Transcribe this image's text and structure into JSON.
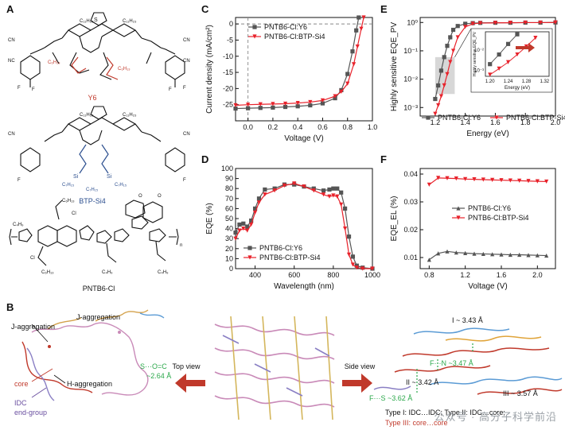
{
  "panel_labels": {
    "a": "A",
    "b": "B",
    "c": "C",
    "d": "D",
    "e": "E",
    "f": "F"
  },
  "structures": {
    "y6": {
      "name": "Y6",
      "sub_core": "C11H23",
      "sub_side": "C6H13",
      "substituents": [
        "CN",
        "F",
        "S",
        "N"
      ],
      "name_color": "#c0392b"
    },
    "btp": {
      "name": "BTP-Si4",
      "sub_core": "C11H23",
      "silane": "Si",
      "alkyl": "C7H15",
      "name_color": "#2c4f8f"
    },
    "pntb": {
      "name": "PNTB6-Cl",
      "cl": "Cl",
      "c4": "C4H9",
      "c6": "C6H13",
      "n_sub": "n"
    }
  },
  "colors": {
    "y6": "#555555",
    "si4": "#e8222b",
    "gray_box": "#bdbdbd",
    "arrow_red": "#c0392b",
    "hbond": "#2aa84a"
  },
  "chart_data": [
    {
      "id": "C",
      "type": "line",
      "xlabel": "Voltage (V)",
      "ylabel": "Current density (mA/cm²)",
      "xlim": [
        -0.1,
        1.0
      ],
      "ylim": [
        -30,
        2
      ],
      "xticks": [
        0.0,
        0.2,
        0.4,
        0.6,
        0.8,
        1.0
      ],
      "yticks": [
        0,
        -5,
        -10,
        -15,
        -20,
        -25
      ],
      "legend_position": "top-left",
      "series": [
        {
          "name": "PNTB6-Cl:Y6",
          "color": "#555555",
          "marker": "square",
          "x": [
            -0.1,
            0.0,
            0.1,
            0.2,
            0.3,
            0.4,
            0.5,
            0.6,
            0.7,
            0.75,
            0.8,
            0.84,
            0.87,
            0.89
          ],
          "y": [
            -26.2,
            -26.1,
            -26.0,
            -25.9,
            -25.7,
            -25.5,
            -25.2,
            -24.6,
            -23.0,
            -20.5,
            -15.5,
            -8.5,
            -2.0,
            2.0
          ]
        },
        {
          "name": "PNTB6-Cl:BTP-Si4",
          "color": "#e8222b",
          "marker": "triangle-down",
          "x": [
            -0.1,
            0.0,
            0.1,
            0.2,
            0.3,
            0.4,
            0.5,
            0.6,
            0.7,
            0.75,
            0.8,
            0.85,
            0.88,
            0.91,
            0.93
          ],
          "y": [
            -25.2,
            -25.0,
            -24.9,
            -24.8,
            -24.7,
            -24.5,
            -24.2,
            -23.7,
            -22.4,
            -21.0,
            -18.5,
            -12.5,
            -7.0,
            -1.5,
            2.0
          ]
        }
      ]
    },
    {
      "id": "D",
      "type": "line",
      "xlabel": "Wavelength (nm)",
      "ylabel": "EQE (%)",
      "xlim": [
        300,
        1000
      ],
      "ylim": [
        0,
        100
      ],
      "xticks": [
        400,
        600,
        800,
        1000
      ],
      "yticks": [
        0,
        10,
        20,
        30,
        40,
        50,
        60,
        70,
        80,
        90,
        100
      ],
      "legend_position": "bottom-left",
      "series": [
        {
          "name": "PNTB6-Cl:Y6",
          "color": "#555555",
          "marker": "square",
          "x": [
            300,
            320,
            340,
            360,
            380,
            400,
            420,
            450,
            500,
            550,
            600,
            650,
            700,
            750,
            780,
            800,
            820,
            840,
            860,
            880,
            900,
            920,
            950,
            1000
          ],
          "y": [
            36,
            44,
            45,
            42,
            48,
            60,
            70,
            79,
            80,
            84,
            84,
            82,
            80,
            78,
            79,
            80,
            80,
            76,
            60,
            32,
            12,
            3,
            1,
            0
          ]
        },
        {
          "name": "PNTB6-Cl:BTP-Si4",
          "color": "#e8222b",
          "marker": "triangle-down",
          "x": [
            300,
            320,
            340,
            360,
            380,
            400,
            420,
            450,
            500,
            550,
            600,
            650,
            700,
            750,
            780,
            800,
            820,
            840,
            860,
            880,
            900,
            920,
            950,
            1000
          ],
          "y": [
            30,
            38,
            40,
            38,
            44,
            56,
            66,
            74,
            78,
            83,
            85,
            82,
            78,
            74,
            72,
            73,
            72,
            64,
            40,
            14,
            4,
            1,
            0,
            0
          ]
        }
      ]
    },
    {
      "id": "E",
      "type": "line",
      "xlabel": "Energy (eV)",
      "ylabel": "Highly sensitive EQE_PV",
      "yscale": "log",
      "xlim": [
        1.1,
        2.0
      ],
      "ylim": [
        0.0005,
        1.5
      ],
      "xticks": [
        1.2,
        1.4,
        1.6,
        1.8,
        2.0
      ],
      "yticks": [
        0.001,
        0.01,
        0.1,
        1
      ],
      "ytick_labels": [
        "10⁻³",
        "10⁻²",
        "10⁻¹",
        "10⁰"
      ],
      "legend_position": "bottom",
      "series": [
        {
          "name": "PNTB6-Cl:Y6",
          "color": "#555555",
          "marker": "square",
          "x": [
            1.2,
            1.22,
            1.24,
            1.26,
            1.28,
            1.3,
            1.32,
            1.35,
            1.4,
            1.45,
            1.5,
            1.6,
            1.7,
            1.8,
            1.9,
            2.0
          ],
          "y": [
            0.002,
            0.006,
            0.02,
            0.06,
            0.15,
            0.3,
            0.55,
            0.75,
            0.9,
            0.95,
            0.97,
            0.98,
            0.98,
            0.99,
            0.99,
            1.0
          ]
        },
        {
          "name": "PNTB6-Cl:BTP-Si4",
          "color": "#e8222b",
          "marker": "triangle-down",
          "x": [
            1.2,
            1.22,
            1.24,
            1.26,
            1.28,
            1.3,
            1.32,
            1.35,
            1.4,
            1.45,
            1.5,
            1.6,
            1.7,
            1.8,
            1.9,
            2.0
          ],
          "y": [
            0.0006,
            0.0012,
            0.0025,
            0.006,
            0.015,
            0.04,
            0.1,
            0.3,
            0.7,
            0.9,
            0.95,
            0.97,
            0.98,
            0.99,
            0.99,
            1.0
          ]
        }
      ],
      "inset": {
        "xlabel": "Energy (eV)",
        "ylabel": "Highly sensitive EQE_PV",
        "xlim": [
          1.19,
          1.33
        ],
        "xticks": [
          1.2,
          1.24,
          1.28,
          1.32
        ],
        "yticks": [
          0.001,
          0.01
        ],
        "ytick_labels": [
          "10⁻³",
          "10⁻²"
        ]
      }
    },
    {
      "id": "F",
      "type": "line",
      "xlabel": "Voltage (V)",
      "ylabel": "EQE_EL (%)",
      "xlim": [
        0.7,
        2.2
      ],
      "ylim": [
        0.006,
        0.042
      ],
      "xticks": [
        0.8,
        1.2,
        1.6,
        2.0
      ],
      "yticks": [
        0.01,
        0.02,
        0.03,
        0.04
      ],
      "legend_position": "middle",
      "series": [
        {
          "name": "PNTB6-Cl:Y6",
          "color": "#555555",
          "marker": "triangle-up",
          "x": [
            0.8,
            0.9,
            1.0,
            1.1,
            1.2,
            1.3,
            1.4,
            1.5,
            1.6,
            1.7,
            1.8,
            1.9,
            2.0,
            2.1
          ],
          "y": [
            0.0092,
            0.0115,
            0.0122,
            0.0118,
            0.0116,
            0.0114,
            0.0113,
            0.0112,
            0.0111,
            0.011,
            0.011,
            0.0109,
            0.0108,
            0.0107
          ]
        },
        {
          "name": "PNTB6-Cl:BTP-Si4",
          "color": "#e8222b",
          "marker": "triangle-down",
          "x": [
            0.8,
            0.9,
            1.0,
            1.1,
            1.2,
            1.3,
            1.4,
            1.5,
            1.6,
            1.7,
            1.8,
            1.9,
            2.0,
            2.1
          ],
          "y": [
            0.0362,
            0.0386,
            0.0385,
            0.0384,
            0.0382,
            0.0381,
            0.038,
            0.0379,
            0.0378,
            0.0377,
            0.0376,
            0.0375,
            0.0374,
            0.0373
          ]
        }
      ]
    }
  ],
  "panel_b": {
    "labels": {
      "j_agg_1": "J-aggregation",
      "j_agg_2": "J-aggregation",
      "h_agg": "H-aggregation",
      "core": "core",
      "idc": "IDC",
      "end_group": "end-group",
      "so": "S···O=C",
      "so_dist": "~2.64 Å",
      "top_view": "Top view",
      "side_view": "Side view",
      "i_dist": "I ~ 3.43 Å",
      "ii_dist": "II ~ 3.42 Å",
      "iii_dist": "III ~ 3.57 Å",
      "fn": "F···N ~3.47 Å",
      "fs": "F···S ~3.62 Å",
      "type_line1": "Type I: IDC…IDC; Type II: IDC…core;",
      "type_line2": "Type III: core…core"
    }
  },
  "watermark": "公众号 · 高分子科学前沿"
}
